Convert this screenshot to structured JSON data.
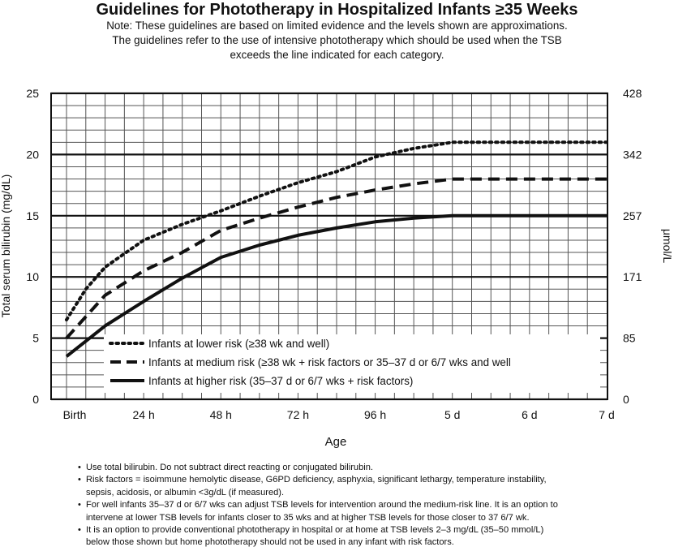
{
  "title": "Guidelines for Phototherapy in Hospitalized Infants ≥35 Weeks",
  "note_lines": [
    "Note: These guidelines are based on limited evidence and the levels shown are approximations.",
    "The guidelines refer to the use of intensive phototherapy which should be used when the TSB",
    "exceeds the line indicated for each category."
  ],
  "chart_data": {
    "type": "line",
    "xlabel": "Age",
    "ylabel": "Total serum bilirubin (mg/dL)",
    "y2label": "μmol/L",
    "xlim": [
      0,
      168
    ],
    "ylim": [
      0,
      25
    ],
    "x_ticks": [
      {
        "x": 0,
        "label": "Birth"
      },
      {
        "x": 24,
        "label": "24 h"
      },
      {
        "x": 48,
        "label": "48 h"
      },
      {
        "x": 72,
        "label": "72 h"
      },
      {
        "x": 96,
        "label": "96 h"
      },
      {
        "x": 120,
        "label": "5 d"
      },
      {
        "x": 144,
        "label": "6 d"
      },
      {
        "x": 168,
        "label": "7 d"
      }
    ],
    "y_ticks": [
      {
        "y": 0,
        "label": "0"
      },
      {
        "y": 5,
        "label": "5"
      },
      {
        "y": 10,
        "label": "10"
      },
      {
        "y": 15,
        "label": "15"
      },
      {
        "y": 20,
        "label": "20"
      },
      {
        "y": 25,
        "label": "25"
      }
    ],
    "y2_ticks": [
      {
        "y": 0,
        "label": "0"
      },
      {
        "y": 5,
        "label": "85"
      },
      {
        "y": 10,
        "label": "171"
      },
      {
        "y": 15,
        "label": "257"
      },
      {
        "y": 20,
        "label": "342"
      },
      {
        "y": 25,
        "label": "428"
      }
    ],
    "x_minor_step": 6,
    "y_minor_step": 1,
    "grid": true,
    "legend_position": "lower-left",
    "series": [
      {
        "name": "Infants at lower risk (≥38 wk and well)",
        "style": "dotted",
        "x": [
          0,
          6,
          12,
          24,
          36,
          48,
          60,
          72,
          84,
          96,
          108,
          120,
          132,
          144,
          156,
          168
        ],
        "y": [
          6.5,
          9,
          10.8,
          13,
          14.3,
          15.4,
          16.6,
          17.7,
          18.6,
          19.8,
          20.5,
          21,
          21,
          21,
          21,
          21
        ]
      },
      {
        "name": "Infants at medium risk (≥38 wk + risk factors or 35–37 d or 6/7 wks and well",
        "style": "dashed",
        "x": [
          0,
          12,
          24,
          36,
          48,
          60,
          72,
          84,
          96,
          108,
          120,
          132,
          144,
          156,
          168
        ],
        "y": [
          5,
          8.5,
          10.5,
          12,
          13.8,
          14.8,
          15.7,
          16.5,
          17.1,
          17.6,
          18,
          18,
          18,
          18,
          18
        ]
      },
      {
        "name": "Infants at higher risk (35–37 d or 6/7 wks + risk factors)",
        "style": "solid",
        "x": [
          0,
          12,
          24,
          36,
          48,
          60,
          72,
          84,
          96,
          108,
          120,
          132,
          144,
          156,
          168
        ],
        "y": [
          3.5,
          6,
          8,
          9.9,
          11.6,
          12.6,
          13.4,
          14,
          14.5,
          14.8,
          15,
          15,
          15,
          15,
          15
        ]
      }
    ]
  },
  "bullets": [
    "Use total bilirubin.  Do not subtract direct reacting or conjugated bilirubin.",
    "Risk factors = isoimmune hemolytic disease, G6PD deficiency, asphyxia, significant lethargy, temperature instability,",
    "sepsis, acidosis, or albumin <3g/dL (if measured).",
    "For well infants 35–37 d or 6/7 wks can adjust TSB levels for intervention around the medium-risk line. It is an option to",
    "intervene at lower TSB levels for infants closer to 35 wks and at higher TSB levels for those closer to 37 6/7 wk.",
    "It is an option to provide conventional phototherapy in hospital or at home at TSB levels 2–3 mg/dL (35–50 mmol/L)",
    "below those shown but home phototherapy should not be used in any infant with risk factors."
  ]
}
